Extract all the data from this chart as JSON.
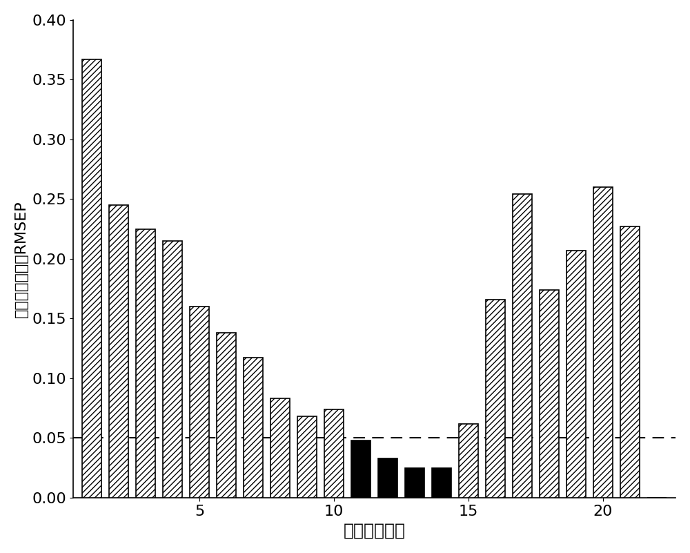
{
  "categories": [
    1,
    2,
    3,
    4,
    5,
    6,
    7,
    8,
    9,
    10,
    11,
    12,
    13,
    14,
    15,
    16,
    17,
    18,
    19,
    20,
    21,
    22
  ],
  "values": [
    0.367,
    0.245,
    0.225,
    0.215,
    0.16,
    0.138,
    0.117,
    0.083,
    0.068,
    0.074,
    0.048,
    0.033,
    0.025,
    0.025,
    0.062,
    0.166,
    0.254,
    0.174,
    0.207,
    0.26,
    0.227,
    0.0
  ],
  "is_black": [
    false,
    false,
    false,
    false,
    false,
    false,
    false,
    false,
    false,
    false,
    true,
    true,
    true,
    true,
    false,
    false,
    false,
    false,
    false,
    false,
    false,
    false
  ],
  "threshold": 0.05,
  "xlabel": "子区间序列号",
  "ylabel": "预测均方根误巪RMSEP",
  "ylim": [
    0.0,
    0.4
  ],
  "yticks": [
    0.0,
    0.05,
    0.1,
    0.15,
    0.2,
    0.25,
    0.3,
    0.35,
    0.4
  ],
  "xticks": [
    5,
    10,
    15,
    20
  ],
  "hatch_pattern": "////",
  "bar_edge_color": "#000000",
  "background_color": "#ffffff",
  "dashed_line_color": "#000000",
  "xlabel_fontsize": 18,
  "ylabel_fontsize": 16,
  "tick_fontsize": 16,
  "bar_width": 0.72,
  "xlim_left": 0.3,
  "xlim_right": 22.7
}
